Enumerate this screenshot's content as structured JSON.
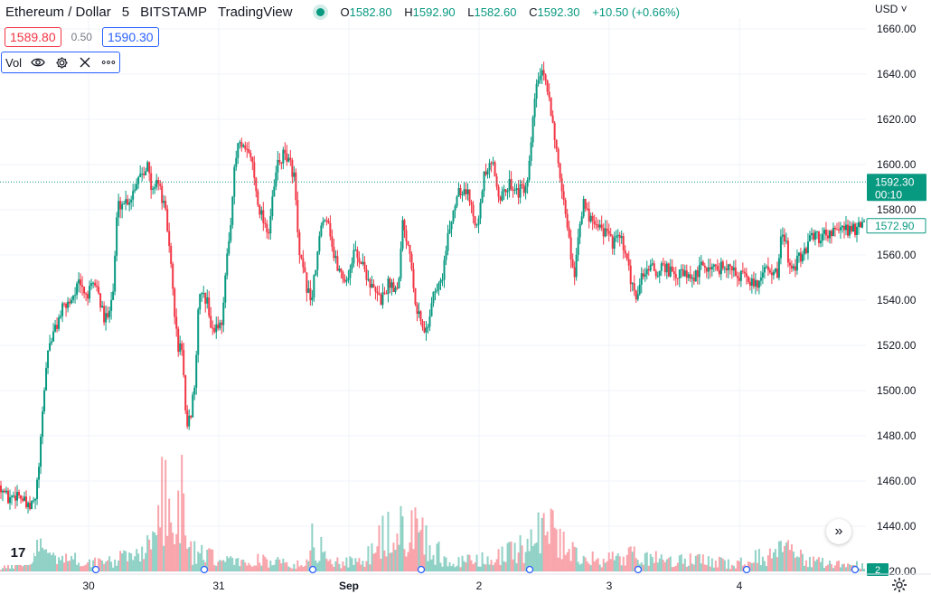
{
  "header": {
    "symbol": "Ethereum / Dollar",
    "interval": "5",
    "exchange": "BITSTAMP",
    "source": "TradingView",
    "ohlc": {
      "o_label": "O",
      "o": "1582.80",
      "h_label": "H",
      "h": "1592.90",
      "l_label": "L",
      "l": "1582.60",
      "c_label": "C",
      "c": "1592.30",
      "change": "+10.50 (+0.66%)"
    }
  },
  "quote": {
    "sell": "1589.80",
    "spread": "0.50",
    "buy": "1590.30"
  },
  "indicator": {
    "label": "Vol",
    "icons": [
      "eye-icon",
      "gear-icon",
      "close-icon",
      "more-icon"
    ]
  },
  "axis": {
    "currency": "USD"
  },
  "colors": {
    "up": "#089981",
    "down": "#f23645",
    "grid": "#f0f3fa",
    "text": "#131722",
    "price_line": "#089981",
    "sma_label": "#089981"
  },
  "chart_data": {
    "type": "candlestick",
    "ylim": [
      1420,
      1665
    ],
    "y_ticks": [
      "1660.00",
      "1640.00",
      "1620.00",
      "1600.00",
      "1580.00",
      "1560.00",
      "1540.00",
      "1520.00",
      "1500.00",
      "1480.00",
      "1460.00",
      "1440.00",
      "1420.00"
    ],
    "x_ticks": [
      "30",
      "31",
      "Sep",
      "2",
      "3",
      "4"
    ],
    "last_price": {
      "value": 1592.3,
      "label": "1592.30",
      "countdown": "00:10"
    },
    "secondary_price": {
      "value": 1572.9,
      "label": "1572.90"
    },
    "volume_last_label": "2",
    "price_path": [
      [
        0,
        1458
      ],
      [
        0.008,
        1452
      ],
      [
        0.02,
        1455
      ],
      [
        0.032,
        1447
      ],
      [
        0.04,
        1452
      ],
      [
        0.045,
        1470
      ],
      [
        0.05,
        1500
      ],
      [
        0.055,
        1520
      ],
      [
        0.06,
        1524
      ],
      [
        0.07,
        1535
      ],
      [
        0.08,
        1540
      ],
      [
        0.09,
        1547
      ],
      [
        0.1,
        1542
      ],
      [
        0.11,
        1548
      ],
      [
        0.12,
        1530
      ],
      [
        0.13,
        1544
      ],
      [
        0.135,
        1582
      ],
      [
        0.15,
        1585
      ],
      [
        0.16,
        1596
      ],
      [
        0.17,
        1600
      ],
      [
        0.175,
        1586
      ],
      [
        0.18,
        1595
      ],
      [
        0.19,
        1580
      ],
      [
        0.195,
        1565
      ],
      [
        0.2,
        1540
      ],
      [
        0.205,
        1518
      ],
      [
        0.21,
        1520
      ],
      [
        0.215,
        1480
      ],
      [
        0.22,
        1490
      ],
      [
        0.225,
        1505
      ],
      [
        0.23,
        1545
      ],
      [
        0.24,
        1538
      ],
      [
        0.245,
        1525
      ],
      [
        0.25,
        1530
      ],
      [
        0.255,
        1528
      ],
      [
        0.26,
        1550
      ],
      [
        0.265,
        1570
      ],
      [
        0.27,
        1595
      ],
      [
        0.275,
        1610
      ],
      [
        0.28,
        1606
      ],
      [
        0.29,
        1604
      ],
      [
        0.295,
        1590
      ],
      [
        0.3,
        1580
      ],
      [
        0.31,
        1570
      ],
      [
        0.315,
        1585
      ],
      [
        0.32,
        1600
      ],
      [
        0.33,
        1605
      ],
      [
        0.34,
        1595
      ],
      [
        0.345,
        1560
      ],
      [
        0.35,
        1553
      ],
      [
        0.355,
        1545
      ],
      [
        0.36,
        1540
      ],
      [
        0.37,
        1570
      ],
      [
        0.375,
        1578
      ],
      [
        0.38,
        1575
      ],
      [
        0.385,
        1560
      ],
      [
        0.39,
        1555
      ],
      [
        0.4,
        1548
      ],
      [
        0.41,
        1562
      ],
      [
        0.42,
        1555
      ],
      [
        0.43,
        1545
      ],
      [
        0.44,
        1540
      ],
      [
        0.45,
        1548
      ],
      [
        0.46,
        1545
      ],
      [
        0.465,
        1575
      ],
      [
        0.47,
        1568
      ],
      [
        0.475,
        1560
      ],
      [
        0.48,
        1540
      ],
      [
        0.49,
        1525
      ],
      [
        0.495,
        1530
      ],
      [
        0.5,
        1542
      ],
      [
        0.51,
        1548
      ],
      [
        0.515,
        1560
      ],
      [
        0.52,
        1572
      ],
      [
        0.53,
        1590
      ],
      [
        0.54,
        1588
      ],
      [
        0.55,
        1575
      ],
      [
        0.555,
        1580
      ],
      [
        0.56,
        1595
      ],
      [
        0.57,
        1600
      ],
      [
        0.575,
        1590
      ],
      [
        0.58,
        1585
      ],
      [
        0.59,
        1592
      ],
      [
        0.6,
        1588
      ],
      [
        0.61,
        1590
      ],
      [
        0.62,
        1635
      ],
      [
        0.625,
        1640
      ],
      [
        0.63,
        1637
      ],
      [
        0.635,
        1630
      ],
      [
        0.64,
        1618
      ],
      [
        0.645,
        1600
      ],
      [
        0.65,
        1585
      ],
      [
        0.655,
        1578
      ],
      [
        0.66,
        1560
      ],
      [
        0.665,
        1552
      ],
      [
        0.67,
        1575
      ],
      [
        0.675,
        1582
      ],
      [
        0.68,
        1578
      ],
      [
        0.69,
        1575
      ],
      [
        0.7,
        1570
      ],
      [
        0.71,
        1565
      ],
      [
        0.715,
        1568
      ],
      [
        0.72,
        1565
      ],
      [
        0.73,
        1548
      ],
      [
        0.735,
        1540
      ],
      [
        0.74,
        1548
      ],
      [
        0.75,
        1555
      ],
      [
        0.76,
        1552
      ],
      [
        0.77,
        1555
      ],
      [
        0.78,
        1550
      ],
      [
        0.79,
        1552
      ],
      [
        0.8,
        1548
      ],
      [
        0.81,
        1554
      ],
      [
        0.82,
        1555
      ],
      [
        0.83,
        1554
      ],
      [
        0.84,
        1556
      ],
      [
        0.85,
        1552
      ],
      [
        0.86,
        1550
      ],
      [
        0.87,
        1548
      ],
      [
        0.875,
        1546
      ],
      [
        0.88,
        1552
      ],
      [
        0.89,
        1555
      ],
      [
        0.9,
        1550
      ],
      [
        0.905,
        1572
      ],
      [
        0.91,
        1565
      ],
      [
        0.915,
        1550
      ],
      [
        0.92,
        1555
      ],
      [
        0.93,
        1562
      ],
      [
        0.94,
        1568
      ],
      [
        0.95,
        1568
      ],
      [
        0.955,
        1570
      ],
      [
        1,
        1572
      ]
    ],
    "volume_profile": [
      [
        0,
        4
      ],
      [
        0.05,
        40
      ],
      [
        0.08,
        20
      ],
      [
        0.12,
        15
      ],
      [
        0.15,
        25
      ],
      [
        0.18,
        60
      ],
      [
        0.19,
        150
      ],
      [
        0.2,
        45
      ],
      [
        0.21,
        145
      ],
      [
        0.215,
        55
      ],
      [
        0.22,
        35
      ],
      [
        0.25,
        20
      ],
      [
        0.28,
        15
      ],
      [
        0.3,
        20
      ],
      [
        0.35,
        10
      ],
      [
        0.36,
        60
      ],
      [
        0.38,
        18
      ],
      [
        0.42,
        15
      ],
      [
        0.44,
        55
      ],
      [
        0.47,
        75
      ],
      [
        0.48,
        90
      ],
      [
        0.5,
        40
      ],
      [
        0.52,
        15
      ],
      [
        0.56,
        20
      ],
      [
        0.59,
        30
      ],
      [
        0.61,
        45
      ],
      [
        0.62,
        70
      ],
      [
        0.63,
        95
      ],
      [
        0.645,
        60
      ],
      [
        0.66,
        35
      ],
      [
        0.68,
        20
      ],
      [
        0.72,
        25
      ],
      [
        0.74,
        30
      ],
      [
        0.77,
        15
      ],
      [
        0.8,
        20
      ],
      [
        0.85,
        12
      ],
      [
        0.88,
        25
      ],
      [
        0.905,
        35
      ],
      [
        0.95,
        15
      ],
      [
        1,
        10
      ]
    ]
  }
}
